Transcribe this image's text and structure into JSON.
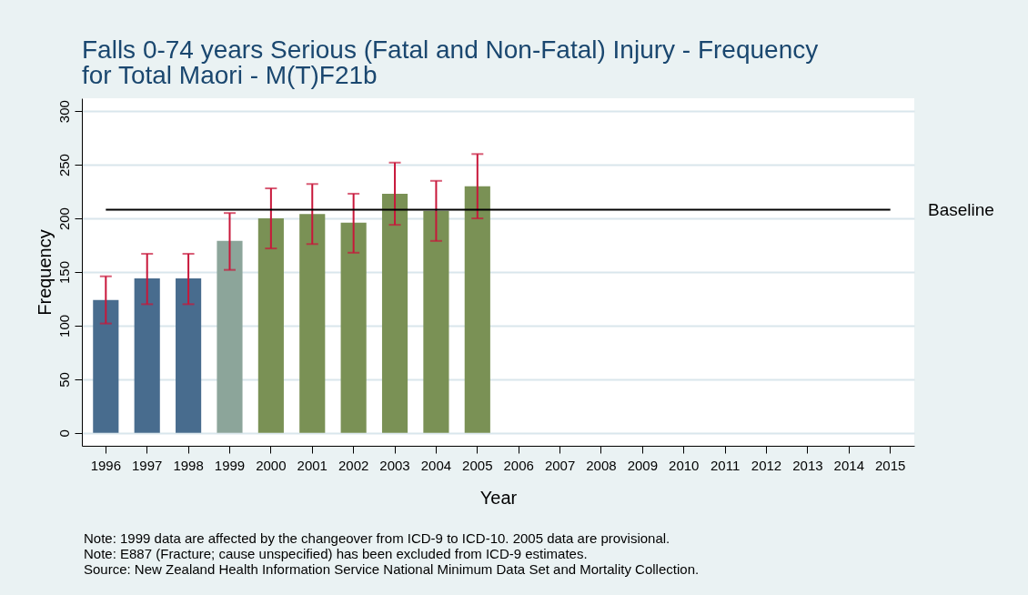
{
  "chart_data": {
    "type": "bar",
    "title": "Falls 0-74 years Serious (Fatal and Non-Fatal) Injury - Frequency for Total Maori - M(T)F21b",
    "xlabel": "Year",
    "ylabel": "Frequency",
    "categories": [
      "1996",
      "1997",
      "1998",
      "1999",
      "2000",
      "2001",
      "2002",
      "2003",
      "2004",
      "2005",
      "2006",
      "2007",
      "2008",
      "2009",
      "2010",
      "2011",
      "2012",
      "2013",
      "2014",
      "2015"
    ],
    "values": [
      124,
      144,
      144,
      179,
      200,
      204,
      196,
      223,
      207,
      230,
      null,
      null,
      null,
      null,
      null,
      null,
      null,
      null,
      null,
      null
    ],
    "colors": [
      "#486c8e",
      "#486c8e",
      "#486c8e",
      "#8ca59a",
      "#7a9155",
      "#7a9155",
      "#7a9155",
      "#7a9155",
      "#7a9155",
      "#7a9155",
      null,
      null,
      null,
      null,
      null,
      null,
      null,
      null,
      null,
      null
    ],
    "errors": [
      [
        102,
        146
      ],
      [
        120,
        167
      ],
      [
        120,
        167
      ],
      [
        152,
        205
      ],
      [
        172,
        228
      ],
      [
        176,
        232
      ],
      [
        168,
        223
      ],
      [
        194,
        252
      ],
      [
        179,
        235
      ],
      [
        200,
        260
      ],
      null,
      null,
      null,
      null,
      null,
      null,
      null,
      null,
      null,
      null
    ],
    "ylim": [
      -12,
      312
    ],
    "yticks": [
      0,
      50,
      100,
      150,
      200,
      250,
      300
    ],
    "grid": "y",
    "ref_lines": [
      {
        "axis": "y",
        "value": 208,
        "label": "Baseline",
        "color": "#000000"
      }
    ],
    "annotations": [
      "Note: 1999 data are affected by the changeover from ICD-9 to ICD-10. 2005 data are provisional.",
      "Note: E887 (Fracture; cause unspecified) has been excluded from ICD-9 estimates.",
      "Source: New Zealand Health Information Service National Minimum Data Set and Mortality Collection."
    ]
  }
}
